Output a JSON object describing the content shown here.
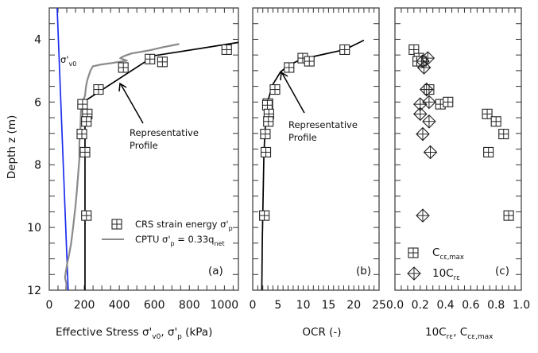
{
  "chart_data": [
    {
      "type": "line",
      "panel_label": "(a)",
      "xlabel": "Effective Stress σ'v0, σ'p (kPa)",
      "xlabel_parts": {
        "main": "Effective Stress σ'",
        "sub1": "v0",
        "mid": ", σ'",
        "sub2": "p",
        "end": " (kPa)"
      },
      "ylabel": "Depth z (m)",
      "xlim": [
        0,
        1080
      ],
      "ylim": [
        3,
        12
      ],
      "xticks": [
        0,
        200,
        400,
        600,
        800,
        1000
      ],
      "yticks": [
        4,
        6,
        8,
        10,
        12
      ],
      "series": [
        {
          "name": "σ'v0",
          "kind": "line",
          "color": "#1a2cf0",
          "points": [
            [
              45,
              3
            ],
            [
              108,
              12
            ]
          ]
        },
        {
          "name": "Representative Profile",
          "kind": "line",
          "color": "#000000",
          "points": [
            [
              1080,
              4.1
            ],
            [
              602,
              4.52
            ],
            [
              208,
              5.95
            ],
            [
              204,
              6.2
            ],
            [
              204,
              12
            ]
          ]
        },
        {
          "name": "CRS strain energy σ'p",
          "kind": "square-marker",
          "color": "#000000",
          "points": [
            [
              1013,
              4.33
            ],
            [
              575,
              4.63
            ],
            [
              646,
              4.72
            ],
            [
              423,
              4.9
            ],
            [
              281,
              5.6
            ],
            [
              190,
              6.07
            ],
            [
              217,
              6.38
            ],
            [
              212,
              6.62
            ],
            [
              186,
              7.02
            ],
            [
              204,
              7.6
            ],
            [
              212,
              9.62
            ]
          ]
        },
        {
          "name": "CPTU σ'p = 0.33qnet",
          "kind": "line",
          "color": "#8a8a8a",
          "points": [
            [
              742,
              4.15
            ],
            [
              650,
              4.25
            ],
            [
              565,
              4.36
            ],
            [
              470,
              4.45
            ],
            [
              429,
              4.53
            ],
            [
              405,
              4.6
            ],
            [
              443,
              4.68
            ],
            [
              353,
              4.76
            ],
            [
              300,
              4.8
            ],
            [
              249,
              4.86
            ],
            [
              235,
              5.0
            ],
            [
              217,
              5.3
            ],
            [
              210,
              5.5
            ],
            [
              204,
              5.8
            ],
            [
              190,
              6.0
            ],
            [
              181,
              6.3
            ],
            [
              178,
              6.8
            ],
            [
              172,
              7.3
            ],
            [
              172,
              7.8
            ],
            [
              165,
              8.3
            ],
            [
              158,
              8.8
            ],
            [
              150,
              9.3
            ],
            [
              140,
              9.8
            ],
            [
              136,
              10.0
            ],
            [
              125,
              10.5
            ],
            [
              112,
              10.9
            ],
            [
              104,
              11.1
            ],
            [
              95,
              11.4
            ],
            [
              90,
              11.6
            ],
            [
              98,
              11.8
            ],
            [
              95,
              12.0
            ]
          ]
        }
      ],
      "annotations": {
        "sigma_v0_label": {
          "main": "σ'",
          "sub": "v0"
        },
        "representative_line1": "Representative",
        "representative_line2": "Profile"
      },
      "legend": {
        "placement": "lower-right",
        "entries": [
          {
            "label": "CRS strain energy σ'",
            "sub": "p",
            "marker": "square"
          },
          {
            "label": "CPTU σ'",
            "sub": "p",
            "label_end": " = 0.33q",
            "sub2": "net",
            "marker": "line"
          }
        ]
      }
    },
    {
      "type": "line",
      "panel_label": "(b)",
      "xlabel": "OCR (-)",
      "xlim": [
        0,
        25
      ],
      "ylim": [
        3,
        12
      ],
      "xticks": [
        0,
        5,
        10,
        15,
        20,
        25
      ],
      "series": [
        {
          "name": "Representative Profile",
          "kind": "line",
          "color": "#000000",
          "points": [
            [
              22,
              4.03
            ],
            [
              18.2,
              4.33
            ],
            [
              12,
              4.55
            ],
            [
              9.7,
              4.63
            ],
            [
              7.1,
              4.83
            ],
            [
              5.5,
              5.04
            ],
            [
              3.9,
              5.46
            ],
            [
              3.0,
              5.97
            ],
            [
              2.4,
              6.97
            ],
            [
              2.2,
              7.8
            ],
            [
              1.9,
              10.4
            ],
            [
              1.8,
              12
            ]
          ]
        },
        {
          "name": "CRS strain energy",
          "kind": "square-marker",
          "color": "#000000",
          "points": [
            [
              18.2,
              4.33
            ],
            [
              9.9,
              4.6
            ],
            [
              11.2,
              4.7
            ],
            [
              7.2,
              4.9
            ],
            [
              4.4,
              5.6
            ],
            [
              3.0,
              6.05
            ],
            [
              2.9,
              6.1
            ],
            [
              3.2,
              6.38
            ],
            [
              3.1,
              6.62
            ],
            [
              2.5,
              7.02
            ],
            [
              2.6,
              7.6
            ],
            [
              2.3,
              9.62
            ]
          ]
        }
      ],
      "annotations": {
        "representative_line1": "Representative",
        "representative_line2": "Profile"
      }
    },
    {
      "type": "scatter",
      "panel_label": "(c)",
      "xlabel": "10Crε, Ccε,max",
      "xlabel_parts": {
        "a": "10C",
        "asub": "rε",
        "b": ", C",
        "bsub": "cε,max"
      },
      "xlim": [
        0,
        1
      ],
      "ylim": [
        3,
        12
      ],
      "xticks": [
        "0.0",
        "0.2",
        "0.4",
        "0.6",
        "0.8",
        "1.0"
      ],
      "series": [
        {
          "name": "Ccε,max",
          "kind": "square-marker",
          "color": "#000000",
          "points": [
            [
              0.15,
              4.33
            ],
            [
              0.19,
              4.6
            ],
            [
              0.18,
              4.7
            ],
            [
              0.21,
              4.7
            ],
            [
              0.27,
              5.6
            ],
            [
              0.36,
              6.07
            ],
            [
              0.42,
              6.0
            ],
            [
              0.73,
              6.38
            ],
            [
              0.8,
              6.62
            ],
            [
              0.86,
              7.02
            ],
            [
              0.74,
              7.6
            ],
            [
              0.9,
              9.62
            ]
          ]
        },
        {
          "name": "10Crε",
          "kind": "diamond-marker",
          "color": "#000000",
          "points": [
            [
              0.26,
              4.6
            ],
            [
              0.22,
              4.7
            ],
            [
              0.23,
              4.9
            ],
            [
              0.25,
              5.6
            ],
            [
              0.27,
              6.0
            ],
            [
              0.2,
              6.07
            ],
            [
              0.2,
              6.38
            ],
            [
              0.27,
              6.62
            ],
            [
              0.22,
              7.02
            ],
            [
              0.28,
              7.6
            ],
            [
              0.22,
              9.62
            ]
          ]
        }
      ],
      "legend": {
        "placement": "lower-left",
        "entries": [
          {
            "label": "C",
            "sub": "cε,max",
            "marker": "square"
          },
          {
            "label": "10C",
            "sub": "rε",
            "marker": "diamond"
          }
        ]
      }
    }
  ]
}
